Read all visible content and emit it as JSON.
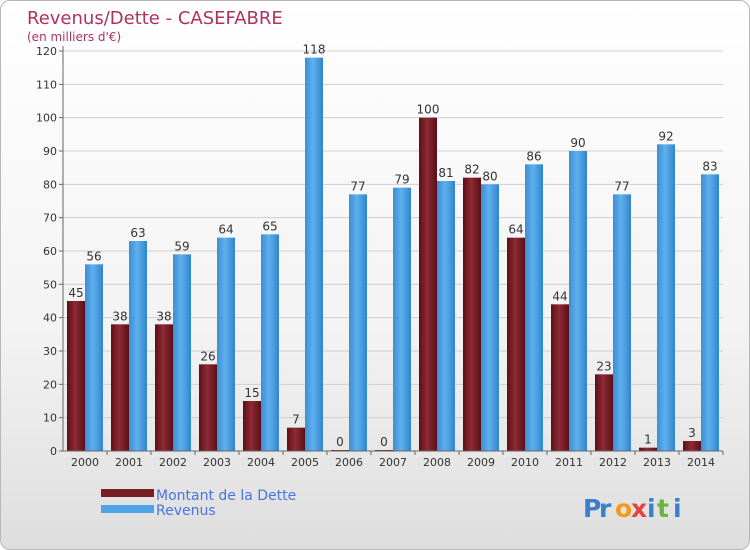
{
  "chart_data": {
    "type": "bar",
    "title": "Revenus/Dette - CASEFABRE",
    "subtitle": "(en milliers d'€)",
    "categories": [
      "2000",
      "2001",
      "2002",
      "2003",
      "2004",
      "2005",
      "2006",
      "2007",
      "2008",
      "2009",
      "2010",
      "2011",
      "2012",
      "2013",
      "2014"
    ],
    "series": [
      {
        "name": "Montant de la Dette",
        "color": "#7a1e26",
        "values": [
          45,
          38,
          38,
          26,
          15,
          7,
          0,
          0,
          100,
          82,
          64,
          44,
          23,
          1,
          3
        ]
      },
      {
        "name": "Revenus",
        "color": "#4ea3e6",
        "values": [
          56,
          63,
          59,
          64,
          65,
          118,
          77,
          79,
          81,
          80,
          86,
          90,
          77,
          92,
          83
        ]
      }
    ],
    "ylim": [
      0,
      120
    ],
    "yticks": [
      0,
      10,
      20,
      30,
      40,
      50,
      60,
      70,
      80,
      90,
      100,
      110,
      120
    ],
    "grid": true,
    "legend": "bottom-left"
  },
  "brand": {
    "text": "Proxiti"
  }
}
